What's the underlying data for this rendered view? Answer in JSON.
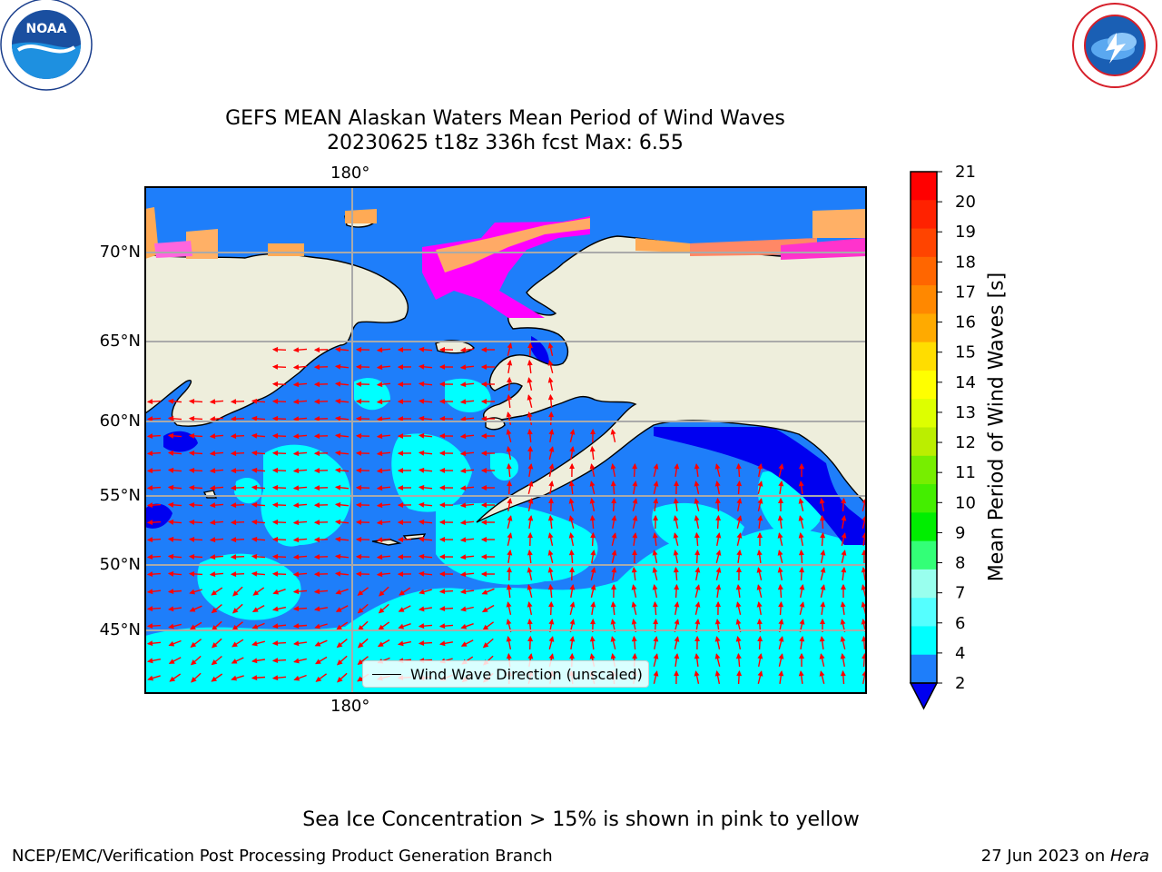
{
  "title_line1": "GEFS MEAN Alaskan Waters Mean Period of Wind Waves",
  "title_line2": "20230625 t18z 336h fcst   Max: 6.55",
  "logos": {
    "left": "NOAA",
    "right": "NATIONAL WEATHER SERVICE"
  },
  "map": {
    "longitude_label_top": "180°",
    "longitude_label_bottom": "180°",
    "latitude_labels": [
      "70°N",
      "65°N",
      "60°N",
      "55°N",
      "50°N",
      "45°N"
    ],
    "legend_label": "Wind Wave Direction (unscaled)",
    "colors": {
      "land": "#eeeedc",
      "ocean_2_4": "#1e7efa",
      "ocean_4_6": "#00ffff",
      "ocean_under_2": "#0000f0",
      "ice": "#ff00ff",
      "arrow": "#ff0000"
    }
  },
  "colorbar": {
    "label": "Mean Period of Wind Waves [s]",
    "ticks": [
      "21",
      "20",
      "19",
      "18",
      "17",
      "16",
      "15",
      "14",
      "13",
      "12",
      "11",
      "10",
      "9",
      "8",
      "7",
      "6",
      "4",
      "2"
    ],
    "colors": [
      "#ff0000",
      "#ff2200",
      "#ff4400",
      "#ff6600",
      "#ff8800",
      "#ffaa00",
      "#ffdd00",
      "#ffff00",
      "#ddff00",
      "#bbee00",
      "#77ee00",
      "#44ee00",
      "#00ee00",
      "#33ff77",
      "#99ffee",
      "#55ffff",
      "#00ffff",
      "#1e7efa"
    ],
    "extend_color": "#0000f0"
  },
  "footer": {
    "note": "Sea Ice Concentration > 15% is shown in pink to yellow",
    "left": "NCEP/EMC/Verification Post Processing Product Generation Branch",
    "right_date": "27 Jun 2023 on ",
    "right_machine": "Hera"
  }
}
